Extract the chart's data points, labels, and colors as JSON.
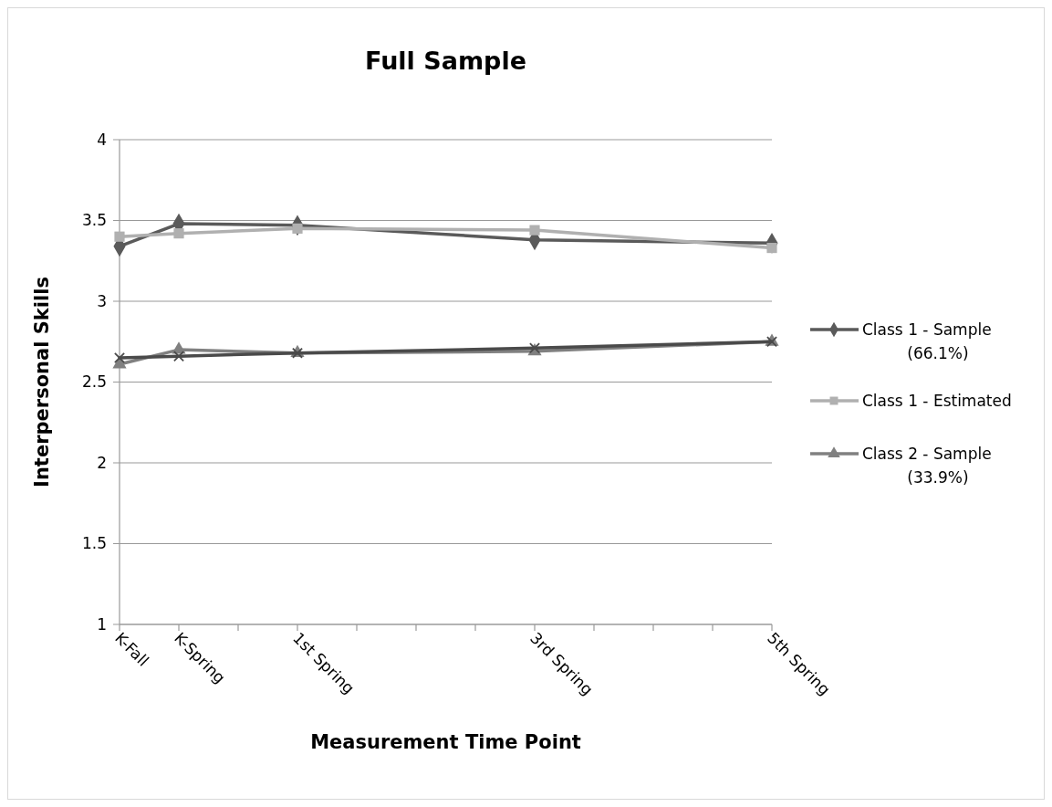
{
  "chart_data": {
    "type": "line",
    "title": "Full Sample",
    "xlabel": "Measurement Time Point",
    "ylabel": "Interpersonal Skills",
    "categories": [
      "K-Fall",
      "K-Spring",
      null,
      "1st Spring",
      null,
      null,
      null,
      "3rd Spring",
      null,
      null,
      null,
      "5th Spring"
    ],
    "ylim": [
      1,
      4
    ],
    "yticks": [
      1,
      1.5,
      2,
      2.5,
      3,
      3.5,
      4
    ],
    "grid": "y",
    "legend": "right",
    "series": [
      {
        "name": "Class 1 - Sample (66.1%)",
        "color": "#5a5a5a",
        "marker": "diamond",
        "x": [
          "K-Fall",
          "K-Spring",
          "1st Spring",
          "3rd Spring",
          "5th Spring"
        ],
        "values": [
          3.34,
          3.48,
          3.47,
          3.38,
          3.36
        ]
      },
      {
        "name": "Class 1 - Estimated",
        "color": "#b0b0b0",
        "marker": "square",
        "x": [
          "K-Fall",
          "K-Spring",
          "1st Spring",
          "3rd Spring",
          "5th Spring"
        ],
        "values": [
          3.4,
          3.42,
          3.45,
          3.44,
          3.33
        ]
      },
      {
        "name": "Class 2 - Sample (33.9%)",
        "color": "#808080",
        "marker": "triangle",
        "x": [
          "K-Fall",
          "K-Spring",
          "1st Spring",
          "3rd Spring",
          "5th Spring"
        ],
        "values": [
          2.61,
          2.7,
          2.68,
          2.69,
          2.75
        ]
      },
      {
        "color": "#4a4a4a",
        "marker": "cross",
        "x": [
          "K-Fall",
          "K-Spring",
          "1st Spring",
          "3rd Spring",
          "5th Spring"
        ],
        "values": [
          2.65,
          2.66,
          2.68,
          2.71,
          2.75
        ]
      }
    ]
  }
}
